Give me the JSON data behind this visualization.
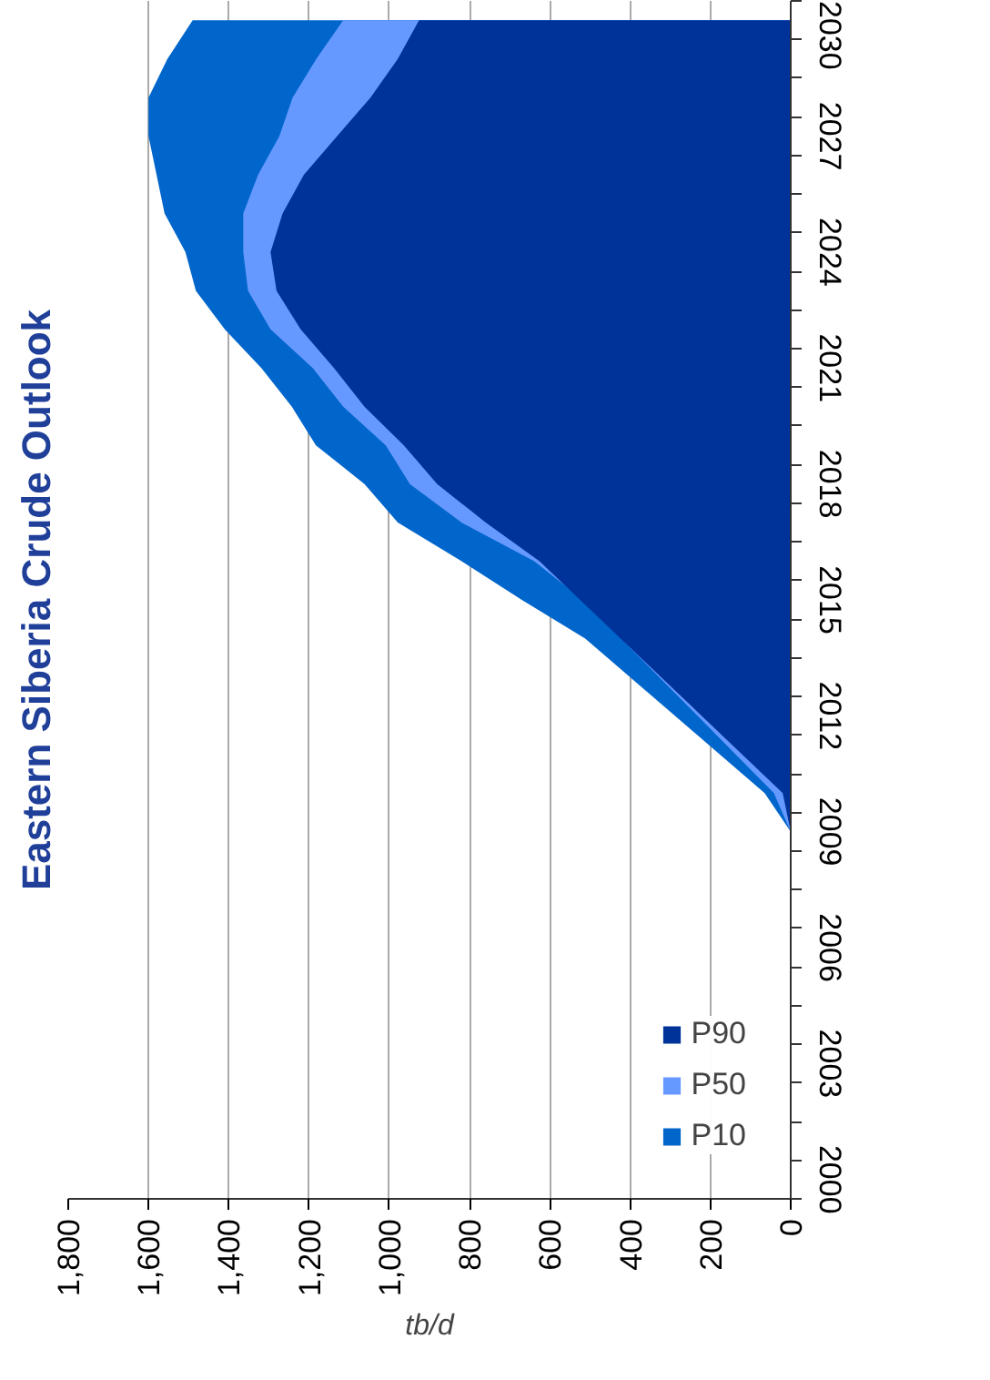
{
  "chart_data": {
    "type": "area",
    "title": "Eastern Siberia Crude Outlook",
    "xlabel": "tb/d",
    "orientation": "horizontal",
    "categories": [
      "2030",
      null,
      null,
      "2027",
      null,
      null,
      "2024",
      null,
      null,
      "2021",
      null,
      null,
      "2018",
      null,
      null,
      "2015",
      null,
      null,
      "2012",
      null,
      null,
      "2009",
      null,
      null,
      "2006",
      null,
      null,
      "2003",
      null,
      null,
      "2000"
    ],
    "series": [
      {
        "name": "P10",
        "color": "#0066cc",
        "values": [
          1490,
          1553,
          1600,
          1600,
          1580,
          1560,
          1508,
          1482,
          1410,
          1319,
          1243,
          1183,
          1062,
          979,
          820,
          670,
          512,
          null,
          null,
          null,
          65,
          0,
          null,
          null,
          null,
          null,
          null,
          null,
          null,
          null,
          null
        ]
      },
      {
        "name": "P50",
        "color": "#6699ff",
        "values": [
          1115,
          1182,
          1241,
          1274,
          1327,
          1364,
          1364,
          1352,
          1296,
          1191,
          1115,
          1009,
          949,
          820,
          639,
          518,
          null,
          null,
          null,
          null,
          42,
          0,
          null,
          null,
          null,
          null,
          null,
          null,
          null,
          null,
          null
        ]
      },
      {
        "name": "P90",
        "color": "#003399",
        "values": [
          926,
          979,
          1047,
          1130,
          1213,
          1266,
          1296,
          1281,
          1221,
          1138,
          1062,
          964,
          881,
          760,
          626,
          null,
          null,
          null,
          null,
          null,
          20,
          0,
          null,
          null,
          null,
          null,
          null,
          null,
          null,
          null,
          null
        ]
      }
    ],
    "xlim": [
      1800,
      0
    ],
    "xticks": [
      {
        "value": 1800,
        "label": "1,800"
      },
      {
        "value": 1600,
        "label": "1,600"
      },
      {
        "value": 1400,
        "label": "1,400"
      },
      {
        "value": 1200,
        "label": "1,200"
      },
      {
        "value": 1000,
        "label": "1,000"
      },
      800,
      600,
      400,
      200,
      0
    ],
    "grid": "x",
    "legend": "bottom right"
  }
}
